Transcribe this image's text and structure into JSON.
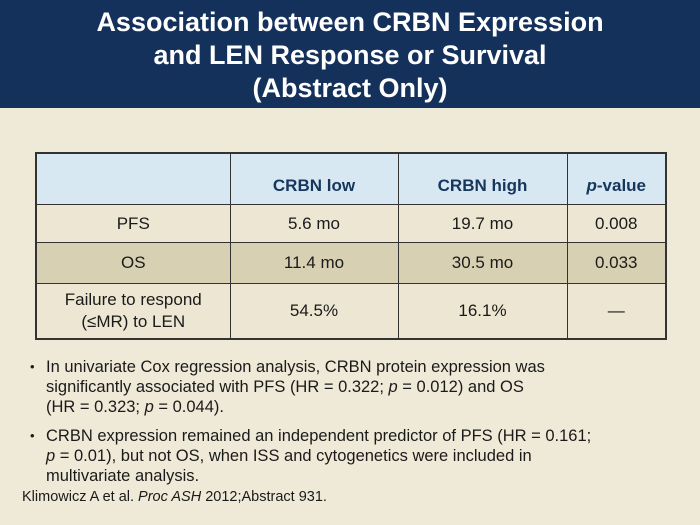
{
  "title": {
    "lines": [
      "Association between CRBN Expression",
      "and LEN Response or Survival",
      "(Abstract Only)"
    ]
  },
  "table": {
    "header": {
      "col0": "",
      "col1": "CRBN low",
      "col2": "CRBN high",
      "col3_rich": [
        {
          "t": "p",
          "i": true
        },
        {
          "t": "-value"
        }
      ]
    },
    "rows": [
      {
        "label": "PFS",
        "crbn_low": "5.6 mo",
        "crbn_high": "19.7 mo",
        "p_value": "0.008"
      },
      {
        "label": "OS",
        "crbn_low": "11.4 mo",
        "crbn_high": "30.5 mo",
        "p_value": "0.033"
      },
      {
        "label": "Failure to respond (≤MR) to LEN",
        "crbn_low": "54.5%",
        "crbn_high": "16.1%",
        "p_value": "—"
      }
    ]
  },
  "bullets": {
    "marker": "•",
    "items": [
      {
        "segments": [
          {
            "t": "In univariate Cox regression analysis, CRBN protein expression was"
          },
          {
            "br": true
          },
          {
            "t": "significantly associated with PFS (HR = 0.322; "
          },
          {
            "t": "p",
            "i": true
          },
          {
            "t": " = 0.012) and OS"
          },
          {
            "br": true
          },
          {
            "t": "(HR = 0.323; "
          },
          {
            "t": "p",
            "i": true
          },
          {
            "t": " = 0.044)."
          }
        ]
      },
      {
        "segments": [
          {
            "t": "CRBN expression remained an independent predictor of PFS (HR = 0.161;"
          },
          {
            "br": true
          },
          {
            "t": "p",
            "i": true
          },
          {
            "t": " = 0.01), but not OS, when ISS and cytogenetics were included in"
          },
          {
            "br": true
          },
          {
            "t": "multivariate analysis."
          }
        ]
      }
    ]
  },
  "citation": {
    "segments": [
      {
        "t": "Klimowicz A et al. "
      },
      {
        "t": "Proc ASH",
        "i": true
      },
      {
        "t": " 2012;Abstract 931."
      }
    ]
  },
  "colors": {
    "banner": "#14315c",
    "background": "#efe9d7",
    "table_header_fill": "#d8e8f3",
    "table_header_text": "#16365c",
    "row_cream": "#ece6d2",
    "row_tan": "#d8d0b3",
    "border": "#333333",
    "title_text": "#ffffff"
  }
}
